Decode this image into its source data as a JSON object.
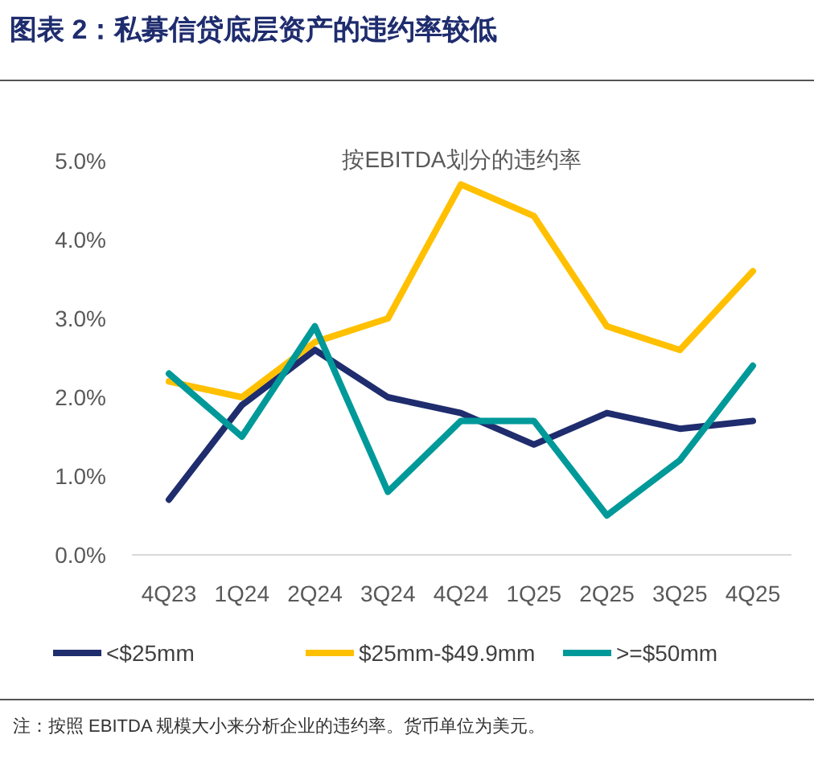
{
  "chart_data": {
    "type": "line",
    "title": "图表 2：私募信贷底层资产的违约率较低",
    "subtitle": "按EBITDA划分的违约率",
    "categories": [
      "4Q23",
      "1Q24",
      "2Q24",
      "3Q24",
      "4Q24",
      "1Q25",
      "2Q25",
      "3Q25",
      "4Q25"
    ],
    "series": [
      {
        "name": "<$25mm",
        "color": "#1f2d6e",
        "values": [
          0.7,
          1.9,
          2.6,
          2.0,
          1.8,
          1.4,
          1.8,
          1.6,
          1.7
        ]
      },
      {
        "name": "$25mm-$49.9mm",
        "color": "#ffc000",
        "values": [
          2.2,
          2.0,
          2.7,
          3.0,
          4.7,
          4.3,
          2.9,
          2.6,
          3.6
        ]
      },
      {
        "name": ">=$50mm",
        "color": "#009999",
        "values": [
          2.3,
          1.5,
          2.9,
          0.8,
          1.7,
          1.7,
          0.5,
          1.2,
          2.4
        ]
      }
    ],
    "ylim": [
      0,
      5
    ],
    "yticks": [
      {
        "value": 0,
        "label": "0.0%"
      },
      {
        "value": 1,
        "label": "1.0%"
      },
      {
        "value": 2,
        "label": "2.0%"
      },
      {
        "value": 3,
        "label": "3.0%"
      },
      {
        "value": 4,
        "label": "4.0%"
      },
      {
        "value": 5,
        "label": "5.0%"
      }
    ],
    "grid": false,
    "legend": "bottom",
    "marker": "none",
    "line_style": "solid",
    "annotations": [
      "注：按照 EBITDA 规模大小来分析企业的违约率。货币单位为美元。"
    ]
  }
}
